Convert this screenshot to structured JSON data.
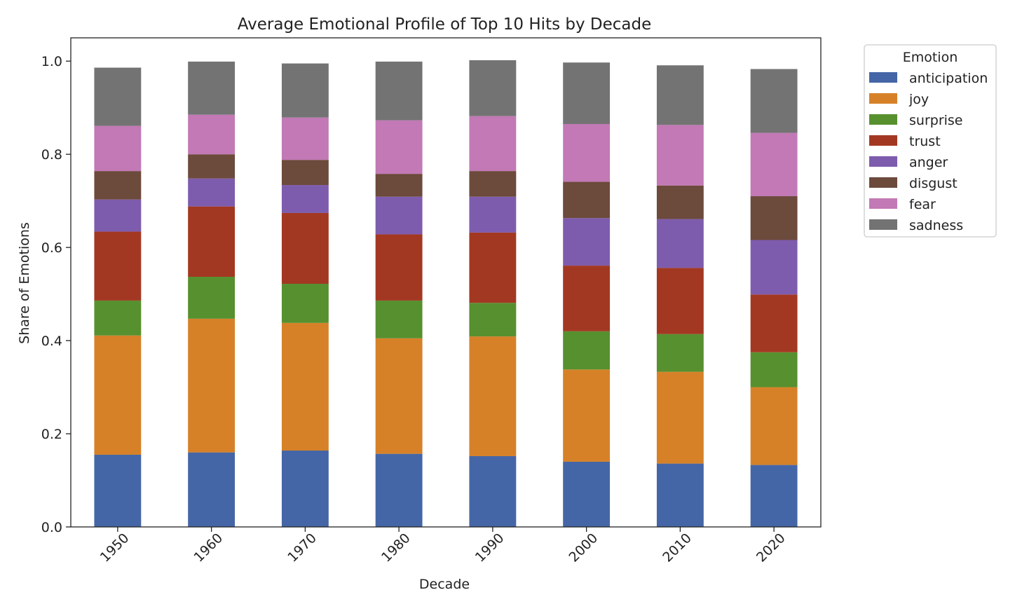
{
  "chart_data": {
    "type": "bar",
    "stacked": true,
    "title": "Average Emotional Profile of Top 10 Hits by Decade",
    "xlabel": "Decade",
    "ylabel": "Share of Emotions",
    "categories": [
      "1950",
      "1960",
      "1970",
      "1980",
      "1990",
      "2000",
      "2010",
      "2020"
    ],
    "ylim": [
      0,
      1.05
    ],
    "yticks": [
      "0.0",
      "0.2",
      "0.4",
      "0.6",
      "0.8",
      "1.0"
    ],
    "grid": false,
    "legend": {
      "title": "Emotion",
      "placement": "outside-top-right"
    },
    "series": [
      {
        "name": "anticipation",
        "color": "#4566a6",
        "values": [
          0.155,
          0.16,
          0.164,
          0.157,
          0.152,
          0.14,
          0.136,
          0.133
        ]
      },
      {
        "name": "joy",
        "color": "#d68128",
        "values": [
          0.256,
          0.287,
          0.274,
          0.248,
          0.257,
          0.198,
          0.197,
          0.167
        ]
      },
      {
        "name": "surprise",
        "color": "#57902f",
        "values": [
          0.075,
          0.09,
          0.084,
          0.081,
          0.072,
          0.082,
          0.081,
          0.075
        ]
      },
      {
        "name": "trust",
        "color": "#a33822",
        "values": [
          0.148,
          0.151,
          0.152,
          0.142,
          0.151,
          0.141,
          0.142,
          0.124
        ]
      },
      {
        "name": "anger",
        "color": "#7e5cad",
        "values": [
          0.069,
          0.06,
          0.06,
          0.081,
          0.077,
          0.102,
          0.105,
          0.117
        ]
      },
      {
        "name": "disgust",
        "color": "#6c4a3c",
        "values": [
          0.061,
          0.052,
          0.054,
          0.049,
          0.055,
          0.078,
          0.072,
          0.094
        ]
      },
      {
        "name": "fear",
        "color": "#c279b5",
        "values": [
          0.097,
          0.085,
          0.091,
          0.115,
          0.118,
          0.124,
          0.13,
          0.136
        ]
      },
      {
        "name": "sadness",
        "color": "#737373",
        "values": [
          0.125,
          0.114,
          0.116,
          0.126,
          0.12,
          0.132,
          0.128,
          0.137
        ]
      }
    ]
  }
}
